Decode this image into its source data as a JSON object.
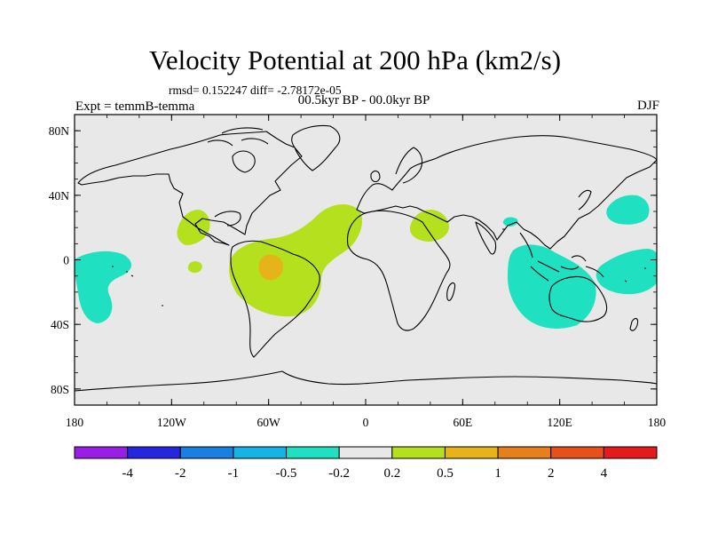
{
  "plot": {
    "title": "Velocity Potential at 200 hPa (km2/s)",
    "stats": "rmsd= 0.152247 diff= -2.78172e-05",
    "experiment": "Expt = temmB-temma",
    "period": "00.5kyr BP - 00.0kyr BP",
    "season": "DJF"
  },
  "axes": {
    "lat_ticks": [
      {
        "value": 80,
        "label": "80N"
      },
      {
        "value": 40,
        "label": "40N"
      },
      {
        "value": 0,
        "label": "0"
      },
      {
        "value": -40,
        "label": "40S"
      },
      {
        "value": -80,
        "label": "80S"
      }
    ],
    "lon_ticks": [
      {
        "value": -180,
        "label": "180"
      },
      {
        "value": -120,
        "label": "120W"
      },
      {
        "value": -60,
        "label": "60W"
      },
      {
        "value": 0,
        "label": "0"
      },
      {
        "value": 60,
        "label": "60E"
      },
      {
        "value": 120,
        "label": "120E"
      },
      {
        "value": 180,
        "label": "180"
      }
    ]
  },
  "colorbar": {
    "colors": [
      "#9a1fe6",
      "#2626e0",
      "#1a7fe0",
      "#16b4e6",
      "#1fe0c0",
      "#e8e8e8",
      "#b4e01e",
      "#e6b41a",
      "#e6801a",
      "#e6501a",
      "#e61a1a"
    ],
    "labels": [
      "-4",
      "-2",
      "-1",
      "-0.5",
      "-0.2",
      "0.2",
      "0.5",
      "1",
      "2",
      "4"
    ]
  },
  "anomalies": [
    {
      "category": "0.2 to 0.5",
      "color": "#b4e01e",
      "region": "equatorial South America & tropical Atlantic"
    },
    {
      "category": "0.5 to 1",
      "color": "#e6b41a",
      "region": "Amazon basin"
    },
    {
      "category": "0.2 to 0.5",
      "color": "#b4e01e",
      "region": "Central America"
    },
    {
      "category": "0.2 to 0.5",
      "color": "#b4e01e",
      "region": "Arabian Peninsula"
    },
    {
      "category": "-0.5 to -0.2",
      "color": "#1fe0c0",
      "region": "eastern Indian Ocean & Indonesia"
    },
    {
      "category": "-0.5 to -0.2",
      "color": "#1fe0c0",
      "region": "western Pacific"
    },
    {
      "category": "-0.5 to -0.2",
      "color": "#1fe0c0",
      "region": "central Pacific"
    }
  ],
  "land_color": "#e8e8e8",
  "coast_color": "#000000"
}
